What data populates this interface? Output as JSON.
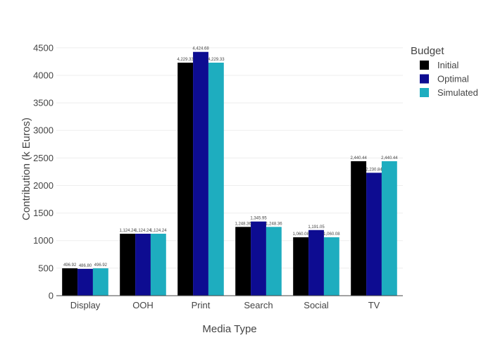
{
  "chart_data": {
    "type": "bar",
    "xlabel": "Media Type",
    "ylabel": "Contribution (k Euros)",
    "ylim": [
      0,
      4600
    ],
    "yticks": [
      0,
      500,
      1000,
      1500,
      2000,
      2500,
      3000,
      3500,
      4000,
      4500
    ],
    "categories": [
      "Display",
      "OOH",
      "Print",
      "Search",
      "Social",
      "TV"
    ],
    "legend": {
      "title": "Budget",
      "placement": "top-right"
    },
    "grid": true,
    "series": [
      {
        "name": "Initial",
        "color": "#000000",
        "values": [
          496.92,
          1124.24,
          4229.33,
          1248.36,
          1060.08,
          2440.44
        ],
        "labels": [
          "496.92",
          "1,124.24",
          "4,229.33",
          "1,248.36",
          "1,060.08",
          "2,440.44"
        ]
      },
      {
        "name": "Optimal",
        "color": "#0d0c91",
        "values": [
          486.8,
          1124.24,
          4424.68,
          1345.95,
          1191.05,
          2230.84
        ],
        "labels": [
          "486.80",
          "1,124.24",
          "4,424.68",
          "1,345.95",
          "1,191.05",
          "2,230.84"
        ]
      },
      {
        "name": "Simulated",
        "color": "#1eadbf",
        "values": [
          496.92,
          1124.24,
          4229.33,
          1248.36,
          1060.08,
          2440.44
        ],
        "labels": [
          "496.92",
          "1,124.24",
          "4,229.33",
          "1,248.36",
          "1,060.08",
          "2,440.44"
        ]
      }
    ]
  }
}
